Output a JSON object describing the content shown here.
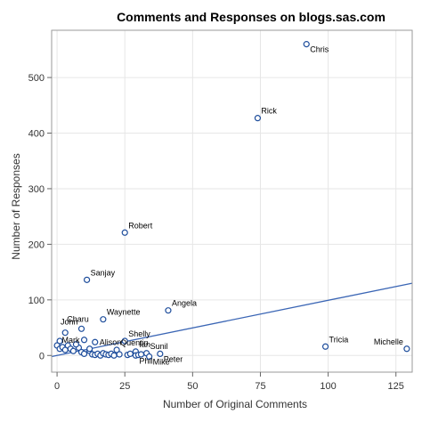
{
  "chart_data": {
    "type": "scatter",
    "title": "Comments and Responses on blogs.sas.com",
    "xlabel": "Number of Original Comments",
    "ylabel": "Number of Responses",
    "xlim": [
      -2,
      131
    ],
    "ylim": [
      -30,
      585
    ],
    "xticks": [
      0,
      25,
      50,
      75,
      100,
      125
    ],
    "yticks": [
      0,
      100,
      200,
      300,
      400,
      500
    ],
    "grid": true,
    "regression_line": {
      "x": [
        -2,
        131
      ],
      "y": [
        -2,
        130
      ]
    },
    "points": [
      {
        "x": 92,
        "y": 560,
        "label": "Chris",
        "lpos": "br"
      },
      {
        "x": 74,
        "y": 427,
        "label": "Rick",
        "lpos": "tr"
      },
      {
        "x": 25,
        "y": 221,
        "label": "Robert",
        "lpos": "tr"
      },
      {
        "x": 11,
        "y": 136,
        "label": "Sanjay",
        "lpos": "tr"
      },
      {
        "x": 41,
        "y": 81,
        "label": "Angela",
        "lpos": "tr"
      },
      {
        "x": 17,
        "y": 65,
        "label": "Waynette",
        "lpos": "tr"
      },
      {
        "x": 9,
        "y": 48,
        "label": "John",
        "lpos": "tl"
      },
      {
        "x": 3,
        "y": 41,
        "label": "Charu",
        "lpos": "tr2"
      },
      {
        "x": 25,
        "y": 26,
        "label": "Shelly",
        "lpos": "tr"
      },
      {
        "x": 99,
        "y": 16,
        "label": "Tricia",
        "lpos": "tr"
      },
      {
        "x": 129,
        "y": 12,
        "label": "Michelle",
        "lpos": "tl"
      },
      {
        "x": 10,
        "y": 28,
        "label": "Mark",
        "lpos": "l"
      },
      {
        "x": 14,
        "y": 24,
        "label": "Alison",
        "lpos": "r"
      },
      {
        "x": 22,
        "y": 10,
        "label": "Quentin",
        "lpos": "tr"
      },
      {
        "x": 29,
        "y": 7,
        "label": "Ian",
        "lpos": "tr"
      },
      {
        "x": 33,
        "y": 4,
        "label": "Sunil",
        "lpos": "tr"
      },
      {
        "x": 38,
        "y": 3,
        "label": "Peter",
        "lpos": "br"
      },
      {
        "x": 29,
        "y": 0,
        "label": "Phil",
        "lpos": "br"
      },
      {
        "x": 34,
        "y": -2,
        "label": "Mike",
        "lpos": "br"
      },
      {
        "x": 1,
        "y": 26
      },
      {
        "x": 0,
        "y": 18
      },
      {
        "x": 1,
        "y": 12
      },
      {
        "x": 2,
        "y": 15
      },
      {
        "x": 3,
        "y": 10
      },
      {
        "x": 4,
        "y": 18
      },
      {
        "x": 5,
        "y": 12
      },
      {
        "x": 6,
        "y": 8
      },
      {
        "x": 8,
        "y": 14
      },
      {
        "x": 9,
        "y": 6
      },
      {
        "x": 10,
        "y": 3
      },
      {
        "x": 12,
        "y": 8
      },
      {
        "x": 13,
        "y": 2
      },
      {
        "x": 14,
        "y": 1
      },
      {
        "x": 15,
        "y": 3
      },
      {
        "x": 16,
        "y": 0
      },
      {
        "x": 17,
        "y": 4
      },
      {
        "x": 18,
        "y": 2
      },
      {
        "x": 19,
        "y": 1
      },
      {
        "x": 20,
        "y": 3
      },
      {
        "x": 21,
        "y": 0
      },
      {
        "x": 23,
        "y": 2
      },
      {
        "x": 26,
        "y": 1
      },
      {
        "x": 27,
        "y": 3
      },
      {
        "x": 30,
        "y": 1
      },
      {
        "x": 31,
        "y": 2
      },
      {
        "x": 12,
        "y": 12
      },
      {
        "x": 7,
        "y": 20
      }
    ]
  }
}
